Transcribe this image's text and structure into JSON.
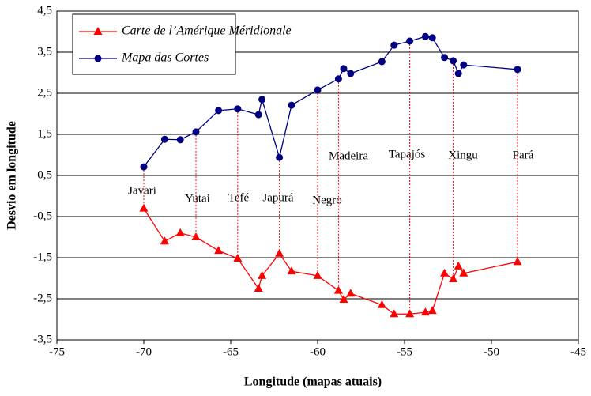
{
  "chart_data": {
    "type": "line",
    "xlabel": "Longitude (mapas atuais)",
    "ylabel": "Desvio em longitude",
    "xlim": [
      -75,
      -45
    ],
    "xticks": [
      -75,
      -70,
      -65,
      -60,
      -55,
      -50,
      -45
    ],
    "ylim": [
      -3.5,
      4.5
    ],
    "yticks": [
      {
        "value": -3.5,
        "label": "-3,5"
      },
      {
        "value": -2.5,
        "label": "-2,5"
      },
      {
        "value": -1.5,
        "label": "-1,5"
      },
      {
        "value": -0.5,
        "label": "-0,5"
      },
      {
        "value": 0.5,
        "label": "0,5"
      },
      {
        "value": 1.5,
        "label": "1,5"
      },
      {
        "value": 2.5,
        "label": "2,5"
      },
      {
        "value": 3.5,
        "label": "3,5"
      },
      {
        "value": 4.5,
        "label": "4,5"
      }
    ],
    "grid": true,
    "legend": "upper left",
    "annotations": [
      "Javari",
      "Yutai",
      "Tefé",
      "Japurá",
      "Negro",
      "Madeira",
      "Tapajós",
      "Xingu",
      "Pará"
    ],
    "x": [
      -70,
      -68.8,
      -67.9,
      -67,
      -65.7,
      -64.6,
      -63.4,
      -63.2,
      -62.2,
      -61.5,
      -60,
      -58.8,
      -58.5,
      -58.1,
      -56.3,
      -55.6,
      -54.7,
      -53.8,
      -53.4,
      -52.7,
      -52.2,
      -51.9,
      -51.6,
      -48.5
    ],
    "series": [
      {
        "name": "Carte de l’Amérique Méridionale",
        "color": "#ff0000",
        "marker": "triangle",
        "values": [
          -0.3,
          -1.1,
          -0.9,
          -1.0,
          -1.33,
          -1.52,
          -2.25,
          -1.94,
          -1.4,
          -1.83,
          -1.94,
          -2.3,
          -2.52,
          -2.37,
          -2.65,
          -2.87,
          -2.87,
          -2.83,
          -2.79,
          -1.88,
          -2.02,
          -1.71,
          -1.88,
          -1.6
        ]
      },
      {
        "name": "Mapa das Cortes",
        "color": "#000080",
        "marker": "circle",
        "values": [
          0.71,
          1.38,
          1.37,
          1.56,
          2.08,
          2.12,
          1.98,
          2.35,
          0.94,
          2.21,
          2.58,
          2.85,
          3.1,
          2.98,
          3.27,
          3.67,
          3.77,
          3.88,
          3.85,
          3.37,
          3.29,
          2.98,
          3.19,
          3.08
        ]
      }
    ]
  }
}
